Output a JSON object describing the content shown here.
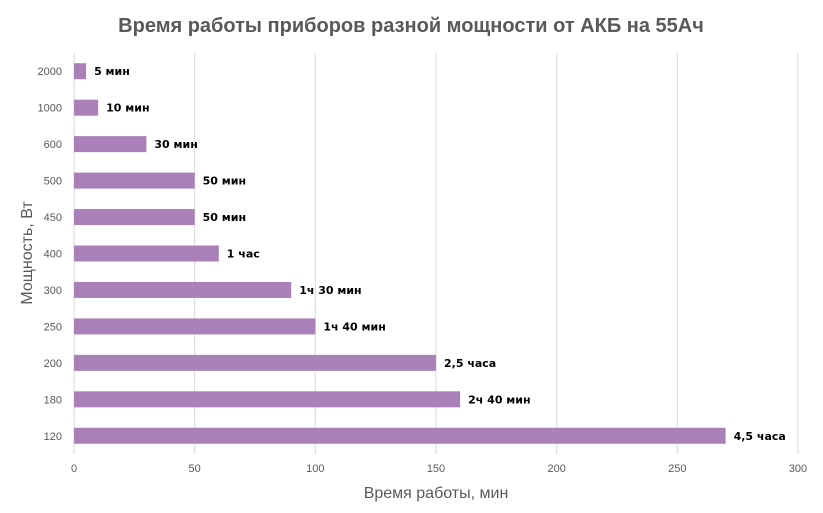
{
  "chart_data": {
    "type": "bar",
    "orientation": "horizontal",
    "title": "Время работы приборов разной мощности от АКБ на 55Ач",
    "xlabel": "Время работы, мин",
    "ylabel": "Мощность, Вт",
    "categories": [
      "2000",
      "1000",
      "600",
      "500",
      "450",
      "400",
      "300",
      "250",
      "200",
      "180",
      "120"
    ],
    "values": [
      5,
      10,
      30,
      50,
      50,
      60,
      90,
      100,
      150,
      160,
      270
    ],
    "data_labels": [
      "5 мин",
      "10 мин",
      "30 мин",
      "50 мин",
      "50 мин",
      "1 час",
      "1ч 30 мин",
      "1ч 40 мин",
      "2,5 часа",
      "2ч 40 мин",
      "4,5 часа"
    ],
    "xlim": [
      0,
      300
    ],
    "xticks": [
      "0",
      "50",
      "100",
      "150",
      "200",
      "250",
      "300"
    ],
    "grid": true,
    "bar_color": "#a981b8",
    "grid_color": "#d9d9d9",
    "text_color": "#595959"
  }
}
